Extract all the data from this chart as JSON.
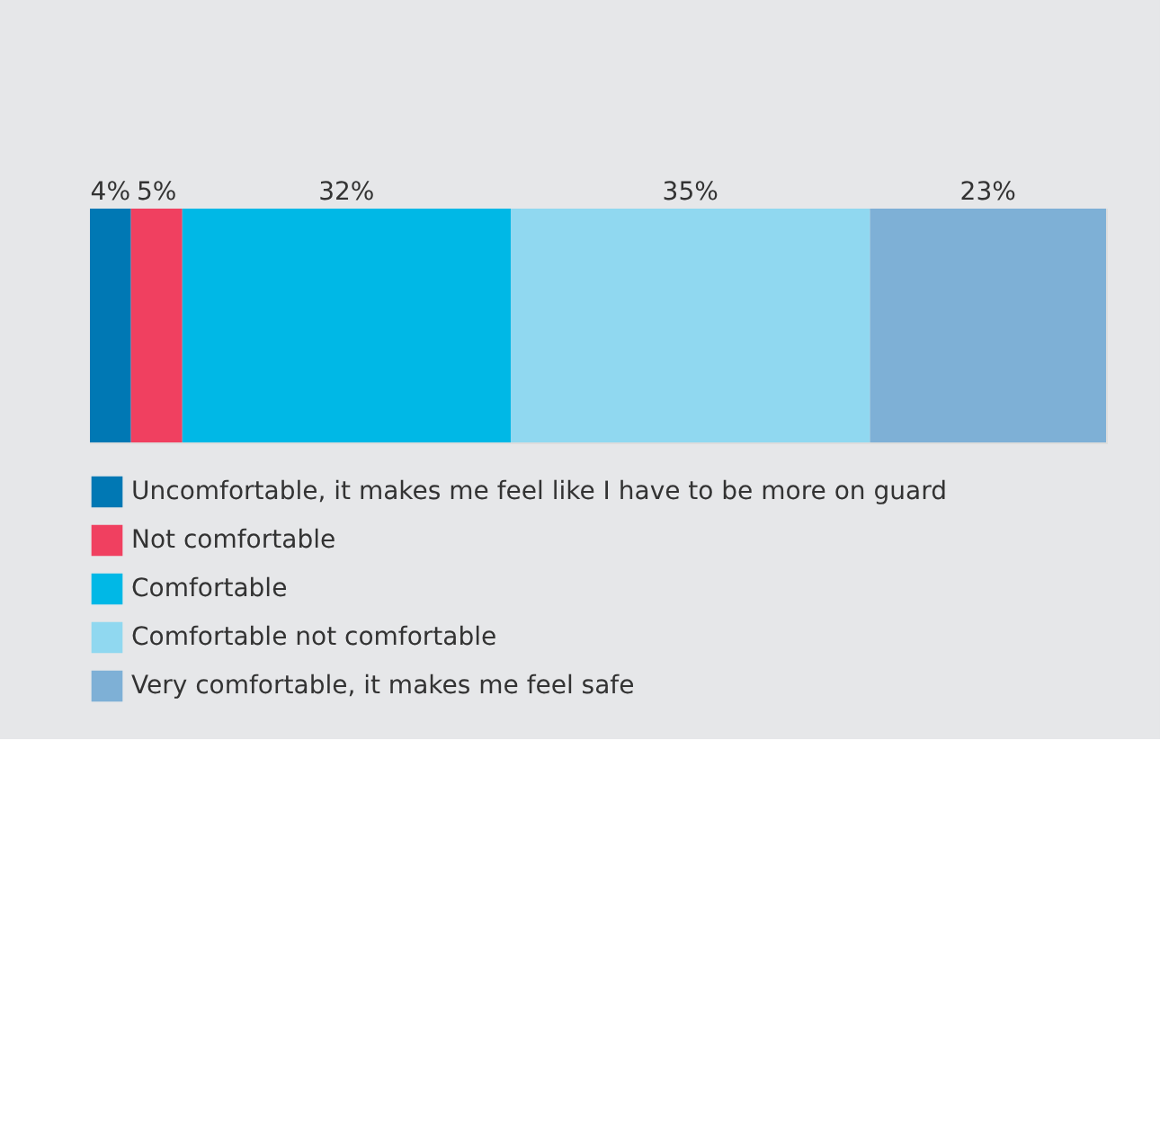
{
  "chart_data": {
    "type": "bar",
    "orientation": "horizontal",
    "stacked": true,
    "tick_labels": false,
    "legend": "bottom",
    "categories": [
      null
    ],
    "series": [
      {
        "name": "Uncomfortable, it makes me feel like I have to be more on guard",
        "color": "#0078b4",
        "values": [
          4
        ],
        "value_labels": [
          "4%"
        ]
      },
      {
        "name": "Not comfortable",
        "color": "#f04060",
        "values": [
          5
        ],
        "value_labels": [
          "5%"
        ]
      },
      {
        "name": "Comfortable",
        "color": "#00b8e6",
        "values": [
          32
        ],
        "value_labels": [
          "32%"
        ]
      },
      {
        "name": "Comfortable not comfortable",
        "color": "#90d8f0",
        "values": [
          35
        ],
        "value_labels": [
          "35%"
        ]
      },
      {
        "name": "Very comfortable, it makes me feel safe",
        "color": "#7eb0d6",
        "values": [
          23
        ],
        "value_labels": [
          "23%"
        ]
      }
    ]
  }
}
